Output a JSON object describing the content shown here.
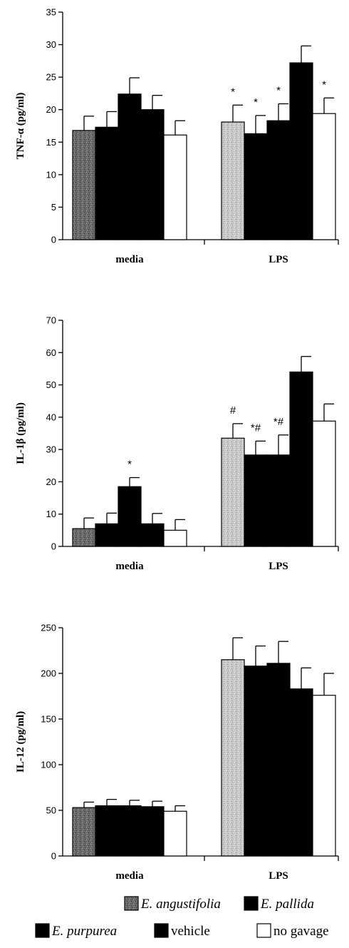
{
  "chart_data": [
    {
      "type": "bar",
      "ylabel": "TNF-α (pg/ml)",
      "ylim": [
        0,
        35
      ],
      "yticks": [
        0,
        5,
        10,
        15,
        20,
        25,
        30,
        35
      ],
      "categories": [
        "media",
        "LPS"
      ],
      "series": [
        {
          "name": "E. angustifolia",
          "values": [
            16.8,
            18.1
          ],
          "errors": [
            2.2,
            2.6
          ]
        },
        {
          "name": "E. pallida",
          "values": [
            17.3,
            16.3
          ],
          "errors": [
            2.4,
            2.8
          ]
        },
        {
          "name": "E. purpurea",
          "values": [
            22.4,
            18.3
          ],
          "errors": [
            2.5,
            2.6
          ]
        },
        {
          "name": "vehicle",
          "values": [
            20.0,
            27.2
          ],
          "errors": [
            2.2,
            2.6
          ]
        },
        {
          "name": "no gavage",
          "values": [
            16.1,
            19.4
          ],
          "errors": [
            2.2,
            2.4
          ]
        }
      ],
      "annotations": [
        {
          "category": "LPS",
          "series": "E. angustifolia",
          "text": "*"
        },
        {
          "category": "LPS",
          "series": "E. pallida",
          "text": "*"
        },
        {
          "category": "LPS",
          "series": "E. purpurea",
          "text": "*"
        },
        {
          "category": "LPS",
          "series": "no gavage",
          "text": "*"
        }
      ]
    },
    {
      "type": "bar",
      "ylabel": "IL-1β (pg/ml)",
      "ylim": [
        0,
        70
      ],
      "yticks": [
        0,
        10,
        20,
        30,
        40,
        50,
        60,
        70
      ],
      "categories": [
        "media",
        "LPS"
      ],
      "series": [
        {
          "name": "E. angustifolia",
          "values": [
            5.5,
            33.5
          ],
          "errors": [
            3.3,
            4.5
          ]
        },
        {
          "name": "E. pallida",
          "values": [
            7.0,
            28.3
          ],
          "errors": [
            3.3,
            4.3
          ]
        },
        {
          "name": "E. purpurea",
          "values": [
            18.5,
            28.3
          ],
          "errors": [
            2.8,
            6.2
          ]
        },
        {
          "name": "vehicle",
          "values": [
            7.0,
            54.0
          ],
          "errors": [
            3.2,
            4.8
          ]
        },
        {
          "name": "no gavage",
          "values": [
            5.0,
            38.8
          ],
          "errors": [
            3.3,
            5.3
          ]
        }
      ],
      "annotations": [
        {
          "category": "media",
          "series": "E. purpurea",
          "text": "*"
        },
        {
          "category": "LPS",
          "series": "E. angustifolia",
          "text": "#"
        },
        {
          "category": "LPS",
          "series": "E. pallida",
          "text": "*#"
        },
        {
          "category": "LPS",
          "series": "E. purpurea",
          "text": "*#"
        }
      ]
    },
    {
      "type": "bar",
      "ylabel": "IL-12 (pg/ml)",
      "ylim": [
        0,
        250
      ],
      "yticks": [
        0,
        50,
        100,
        150,
        200,
        250
      ],
      "categories": [
        "media",
        "LPS"
      ],
      "series": [
        {
          "name": "E. angustifolia",
          "values": [
            53,
            215
          ],
          "errors": [
            6,
            24
          ]
        },
        {
          "name": "E. pallida",
          "values": [
            55,
            208
          ],
          "errors": [
            7,
            22
          ]
        },
        {
          "name": "E. purpurea",
          "values": [
            55,
            211
          ],
          "errors": [
            6,
            24
          ]
        },
        {
          "name": "vehicle",
          "values": [
            54,
            183
          ],
          "errors": [
            6,
            23
          ]
        },
        {
          "name": "no gavage",
          "values": [
            49,
            176
          ],
          "errors": [
            6,
            24
          ]
        }
      ],
      "annotations": []
    }
  ],
  "legend": {
    "placement": "bottom",
    "items": [
      {
        "label": "E. angustifolia",
        "italic": true,
        "color": "#777777",
        "pattern": "speckled"
      },
      {
        "label": "E. pallida",
        "italic": true,
        "color": "#000000",
        "pattern": "solid"
      },
      {
        "label": "E. purpurea",
        "italic": true,
        "color": "#000000",
        "pattern": "solid"
      },
      {
        "label": "vehicle",
        "italic": false,
        "color": "#000000",
        "pattern": "solid"
      },
      {
        "label": "no gavage",
        "italic": false,
        "color": "#ffffff",
        "pattern": "outline"
      }
    ]
  }
}
